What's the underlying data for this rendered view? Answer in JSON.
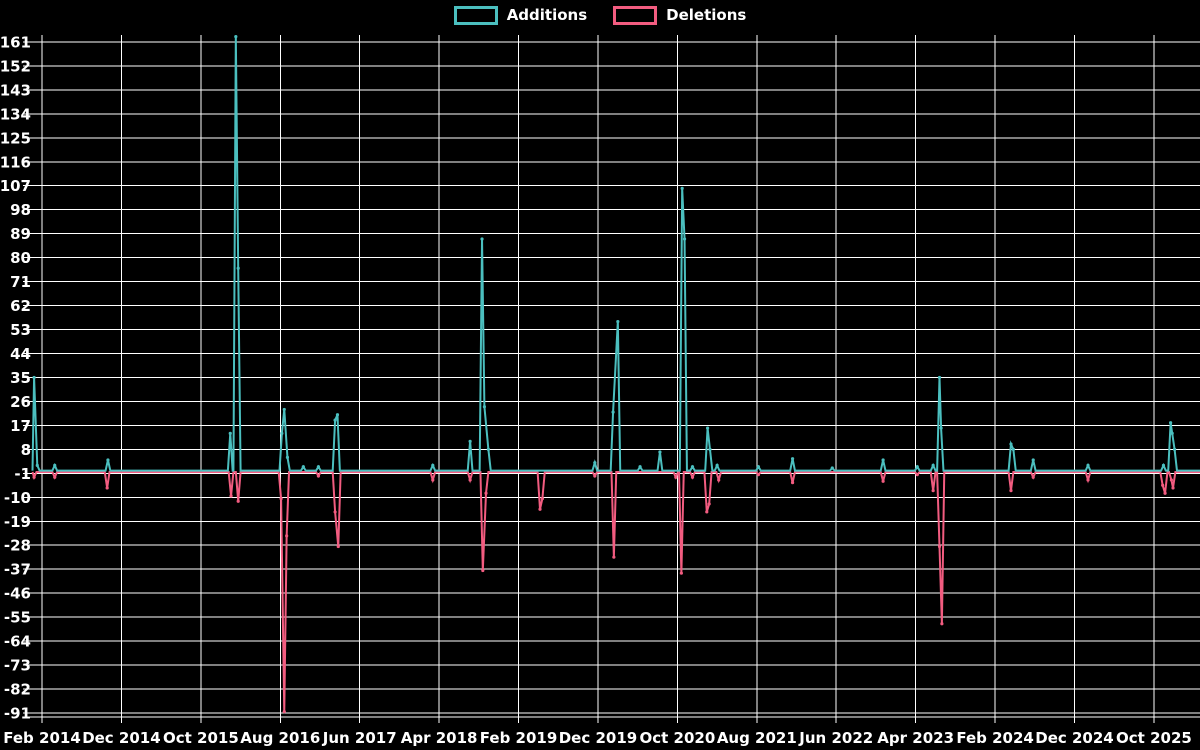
{
  "app": {
    "background": "#000000",
    "text_color": "#ffffff",
    "grid_color": "#ffffff"
  },
  "legend": {
    "position": "top-center",
    "items": [
      {
        "label": "Additions",
        "color": "#4bbfbf"
      },
      {
        "label": "Deletions",
        "color": "#f25c80"
      }
    ]
  },
  "chart_data": {
    "type": "line",
    "title": "",
    "xlabel": "",
    "ylabel": "",
    "grid": true,
    "legend_position": "top-center",
    "x_axis": {
      "unit": "months since Feb 2014",
      "tick_labels": [
        "Feb 2014",
        "Dec 2014",
        "Oct 2015",
        "Aug 2016",
        "Jun 2017",
        "Apr 2018",
        "Feb 2019",
        "Dec 2019",
        "Oct 2020",
        "Aug 2021",
        "Jun 2022",
        "Apr 2023",
        "Feb 2024",
        "Dec 2024",
        "Oct 2025"
      ],
      "tick_month_offsets": [
        0,
        10,
        20,
        30,
        40,
        50,
        60,
        70,
        80,
        90,
        100,
        110,
        120,
        130,
        140
      ],
      "range_month_offset": [
        -1.2,
        145.8
      ]
    },
    "y_axis": {
      "tick_values": [
        161,
        152,
        143,
        134,
        125,
        116,
        107,
        98,
        89,
        80,
        71,
        62,
        53,
        44,
        35,
        26,
        17,
        8,
        -1,
        -10,
        -19,
        -28,
        -37,
        -46,
        -55,
        -64,
        -73,
        -82,
        -91
      ],
      "tick_step": 9,
      "range": [
        -92.5,
        163.6
      ]
    },
    "series": [
      {
        "name": "Additions",
        "color": "#4bbfbf",
        "baseline": 0,
        "points": [
          [
            -1.0,
            35
          ],
          [
            -0.6,
            2
          ],
          [
            1.6,
            2
          ],
          [
            8.3,
            4
          ],
          [
            23.7,
            14
          ],
          [
            24.4,
            163
          ],
          [
            24.7,
            76
          ],
          [
            30.2,
            14
          ],
          [
            30.5,
            23
          ],
          [
            30.9,
            5
          ],
          [
            32.9,
            1.5
          ],
          [
            34.8,
            1.5
          ],
          [
            36.9,
            19
          ],
          [
            37.2,
            21
          ],
          [
            49.2,
            2
          ],
          [
            53.9,
            11
          ],
          [
            55.4,
            87
          ],
          [
            55.7,
            24
          ],
          [
            56.2,
            8
          ],
          [
            69.6,
            3
          ],
          [
            71.9,
            22
          ],
          [
            72.5,
            56
          ],
          [
            75.3,
            1.5
          ],
          [
            77.8,
            7
          ],
          [
            80.6,
            106
          ],
          [
            80.9,
            87
          ],
          [
            81.9,
            1.5
          ],
          [
            83.8,
            16
          ],
          [
            84.1,
            8
          ],
          [
            85.0,
            2
          ],
          [
            90.2,
            1.5
          ],
          [
            94.5,
            4.5
          ],
          [
            99.5,
            1
          ],
          [
            105.9,
            4
          ],
          [
            110.2,
            1.5
          ],
          [
            112.2,
            2
          ],
          [
            113.0,
            35
          ],
          [
            113.2,
            16
          ],
          [
            122.0,
            10
          ],
          [
            122.3,
            8
          ],
          [
            124.8,
            4
          ],
          [
            131.7,
            2
          ],
          [
            141.2,
            2
          ],
          [
            142.1,
            18
          ],
          [
            142.3,
            14
          ],
          [
            142.6,
            8
          ]
        ]
      },
      {
        "name": "Deletions",
        "color": "#f25c80",
        "baseline": 0,
        "points": [
          [
            -1.0,
            -2
          ],
          [
            1.6,
            -2
          ],
          [
            8.2,
            -6
          ],
          [
            23.8,
            -9
          ],
          [
            24.7,
            -11
          ],
          [
            30.1,
            -10
          ],
          [
            30.5,
            -90
          ],
          [
            30.8,
            -24
          ],
          [
            34.8,
            -1.5
          ],
          [
            36.9,
            -15
          ],
          [
            37.3,
            -28
          ],
          [
            49.2,
            -3
          ],
          [
            53.9,
            -3
          ],
          [
            55.5,
            -37
          ],
          [
            55.9,
            -8
          ],
          [
            62.7,
            -14
          ],
          [
            63.0,
            -10
          ],
          [
            69.6,
            -1.5
          ],
          [
            72.0,
            -32
          ],
          [
            79.8,
            -2
          ],
          [
            80.5,
            -38
          ],
          [
            81.9,
            -2
          ],
          [
            83.7,
            -15
          ],
          [
            84.0,
            -12
          ],
          [
            85.2,
            -3
          ],
          [
            90.2,
            -1
          ],
          [
            94.5,
            -4
          ],
          [
            105.9,
            -3.5
          ],
          [
            110.2,
            -1
          ],
          [
            112.2,
            -7
          ],
          [
            113.0,
            -28
          ],
          [
            113.3,
            -57
          ],
          [
            122.0,
            -7
          ],
          [
            124.8,
            -2
          ],
          [
            131.7,
            -3
          ],
          [
            141.1,
            -5
          ],
          [
            141.4,
            -8
          ],
          [
            142.2,
            -3
          ],
          [
            142.4,
            -6
          ]
        ]
      }
    ]
  }
}
